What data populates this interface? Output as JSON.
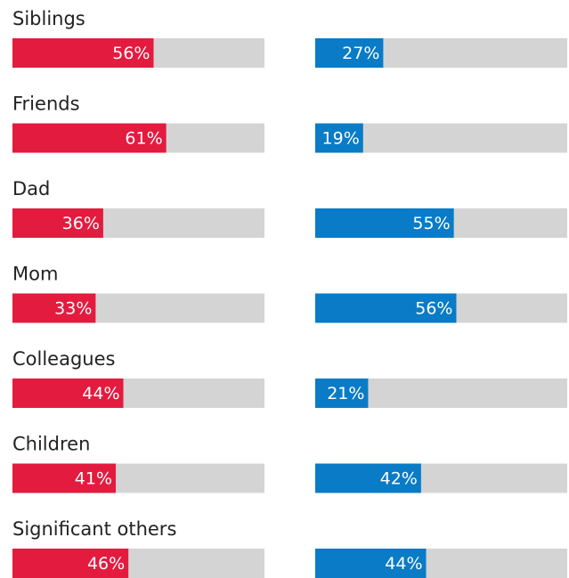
{
  "chart_data": {
    "type": "bar",
    "orientation": "horizontal",
    "categories": [
      "Siblings",
      "Friends",
      "Dad",
      "Mom",
      "Colleagues",
      "Children",
      "Significant others"
    ],
    "xlim": [
      0,
      100
    ],
    "track_color": "#d4d4d4",
    "series": [
      {
        "color": "#e31b3f",
        "values": [
          56,
          61,
          36,
          33,
          44,
          41,
          46
        ],
        "value_labels": [
          "56%",
          "61%",
          "36%",
          "33%",
          "44%",
          "41%",
          "46%"
        ]
      },
      {
        "color": "#0a7bc6",
        "values": [
          27,
          19,
          55,
          56,
          21,
          42,
          44
        ],
        "value_labels": [
          "27%",
          "19%",
          "55%",
          "56%",
          "21%",
          "42%",
          "44%"
        ]
      }
    ]
  }
}
